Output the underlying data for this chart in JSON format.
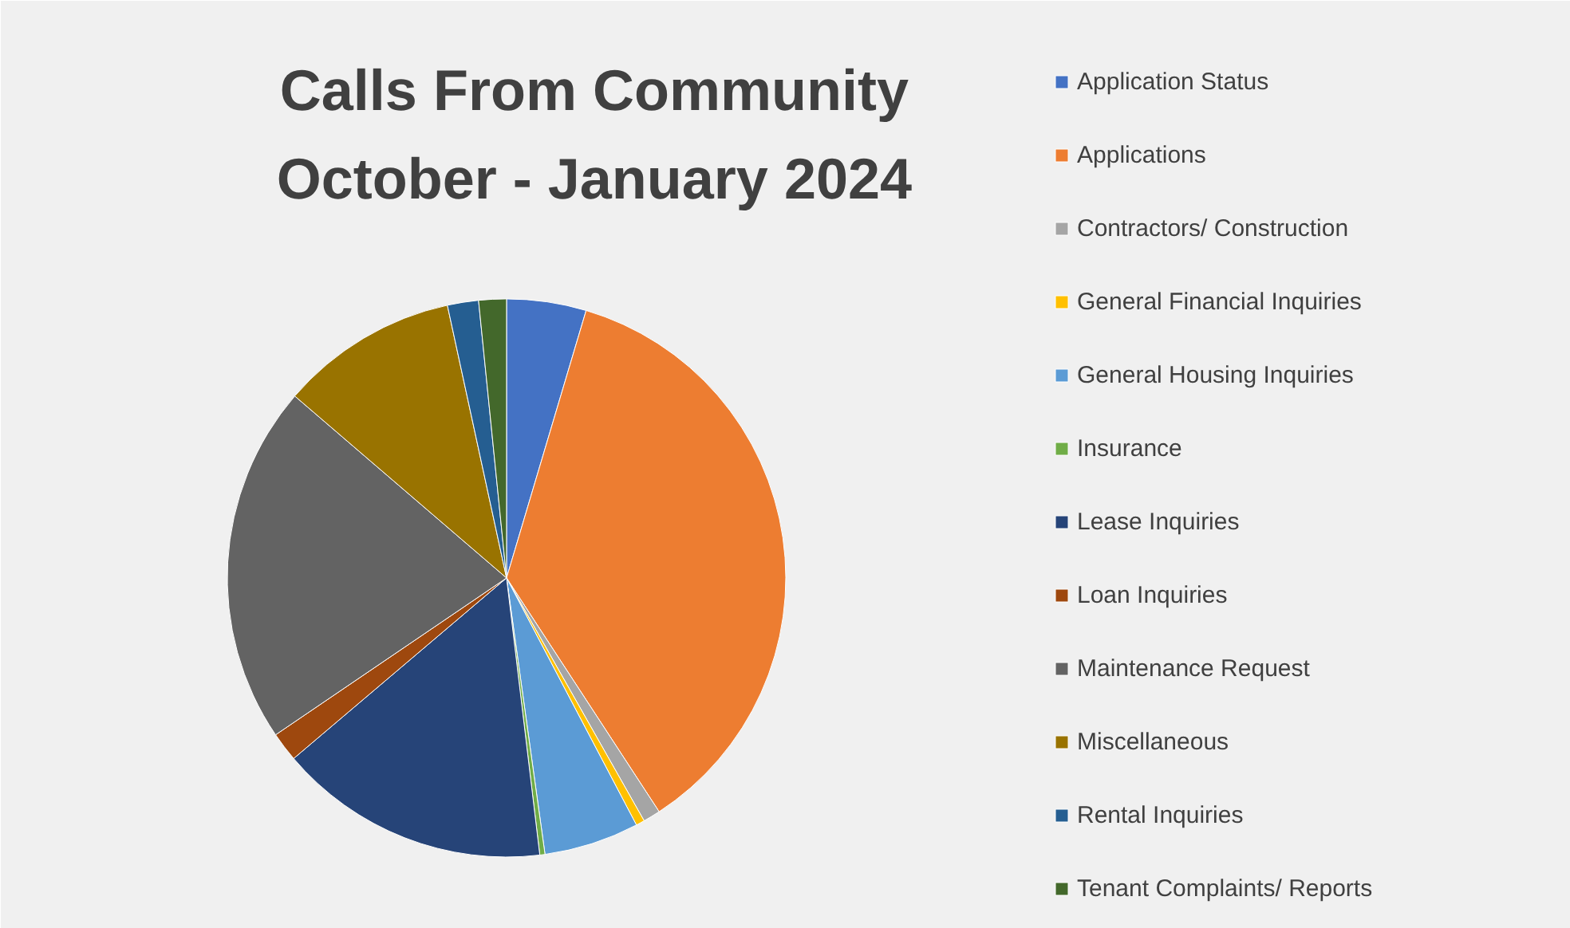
{
  "chart_data": {
    "type": "pie",
    "title": "Calls From Community\nOctober - January 2024",
    "categories": [
      "Application Status",
      "Applications",
      "Contractors/ Construction",
      "General Financial Inquiries",
      "General Housing Inquiries",
      "Insurance",
      "Lease Inquiries",
      "Loan Inquiries",
      "Maintenance Request",
      "Miscellaneous",
      "Rental Inquiries",
      "Tenant Complaints/ Reports"
    ],
    "values": [
      4.6,
      36.2,
      1.0,
      0.5,
      5.5,
      0.3,
      15.7,
      1.7,
      20.8,
      10.3,
      1.8,
      1.6
    ],
    "colors": [
      "#4472c4",
      "#ed7d31",
      "#a5a5a5",
      "#ffc000",
      "#5b9bd5",
      "#70ad47",
      "#264478",
      "#9e480e",
      "#636363",
      "#997300",
      "#255e91",
      "#43682b"
    ],
    "legend": "right"
  }
}
